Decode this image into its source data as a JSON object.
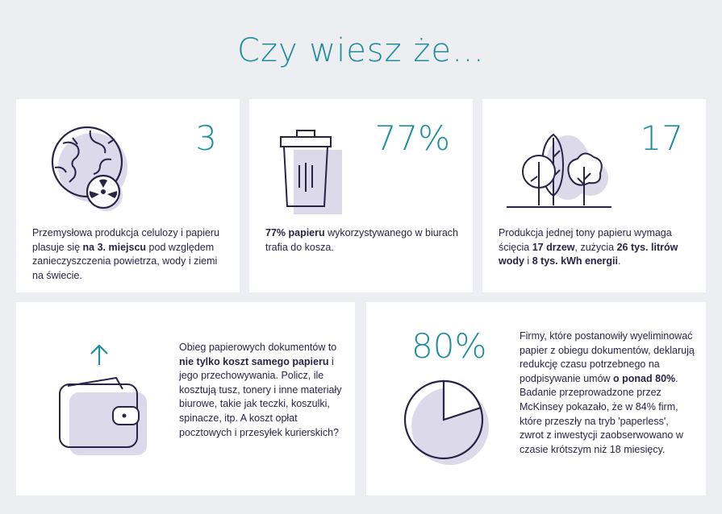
{
  "title": "Czy wiesz że…",
  "colors": {
    "accent": "#1f8e9c",
    "ink": "#2a2346",
    "shadow": "#dcdaea",
    "background": "#edeef2",
    "card": "#ffffff"
  },
  "cards": [
    {
      "icon": "globe-recycle-icon",
      "number": "3",
      "text_parts": [
        {
          "t": "Przemysłowa produkcja celulozy i papieru plasuje się ",
          "b": false
        },
        {
          "t": "na 3. miejscu",
          "b": true
        },
        {
          "t": " pod względem zanieczyszczenia powietrza, wody i ziemi na świecie.",
          "b": false
        }
      ]
    },
    {
      "icon": "trash-bin-icon",
      "number": "77%",
      "text_parts": [
        {
          "t": "77% papieru",
          "b": true
        },
        {
          "t": " wykorzystywanego w biurach trafia do kosza.",
          "b": false
        }
      ]
    },
    {
      "icon": "trees-icon",
      "number": "17",
      "text_parts": [
        {
          "t": "Produkcja jednej tony papieru wymaga ścięcia ",
          "b": false
        },
        {
          "t": "17 drzew",
          "b": true
        },
        {
          "t": ", zużycia ",
          "b": false
        },
        {
          "t": "26 tys. litrów wody",
          "b": true
        },
        {
          "t": " i ",
          "b": false
        },
        {
          "t": "8 tys. kWh energii",
          "b": true
        },
        {
          "t": ".",
          "b": false
        }
      ]
    },
    {
      "icon": "wallet-arrow-up-icon",
      "text_parts": [
        {
          "t": "Obieg papierowych dokumentów to ",
          "b": false
        },
        {
          "t": "nie tylko koszt samego papieru",
          "b": true
        },
        {
          "t": " i jego przechowywania. Policz, ile kosztują tusz, tonery i inne materiały biurowe, takie jak teczki, koszulki, spinacze, itp. A koszt opłat pocztowych i przesyłek kurierskich?",
          "b": false
        }
      ]
    },
    {
      "icon": "pie-chart-icon",
      "number": "80%",
      "progress": 0.8,
      "text_parts": [
        {
          "t": "Firmy, które postanowiły wyeliminować papier z obiegu dokumentów, deklarują redukcję czasu potrzebnego na podpisywanie umów ",
          "b": false
        },
        {
          "t": "o ponad 80%",
          "b": true
        },
        {
          "t": ". Badanie przeprowadzone przez McKinsey pokazało, że w 84% firm, które przeszły na tryb 'paperless', zwrot z inwestycji zaobserwowano w czasie krótszym niż 18 miesięcy.",
          "b": false
        }
      ]
    }
  ]
}
